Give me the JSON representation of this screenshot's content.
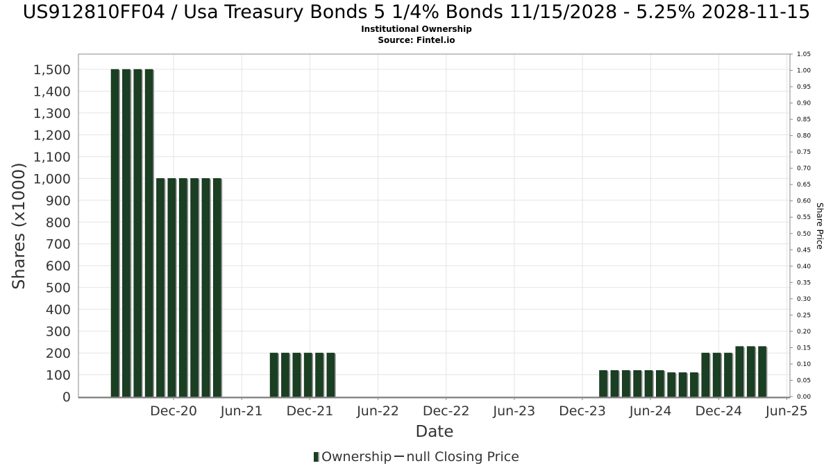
{
  "chart_data": {
    "type": "bar",
    "title": "US912810FF04 / Usa Treasury Bonds 5 1/4% Bonds 11/15/2028 - 5.25% 2028-11-15",
    "subtitle": "Institutional Ownership",
    "source": "Source: Fintel.io",
    "xlabel": "Date",
    "ylabel": "Shares (x1000)",
    "y2label": "Share Price",
    "ylim": [
      0,
      1560
    ],
    "y2lim": [
      0,
      1.05
    ],
    "y_ticks": [
      "0",
      "100",
      "200",
      "300",
      "400",
      "500",
      "600",
      "700",
      "800",
      "900",
      "1,000",
      "1,100",
      "1,200",
      "1,300",
      "1,400",
      "1,500"
    ],
    "y2_ticks": [
      "0.00",
      "0.05",
      "0.10",
      "0.15",
      "0.20",
      "0.25",
      "0.30",
      "0.35",
      "0.40",
      "0.45",
      "0.50",
      "0.55",
      "0.60",
      "0.65",
      "0.70",
      "0.75",
      "0.80",
      "0.85",
      "0.90",
      "0.95",
      "1.00",
      "1.05"
    ],
    "x_ticks": [
      "Dec-20",
      "Jun-21",
      "Dec-21",
      "Jun-22",
      "Dec-22",
      "Jun-23",
      "Dec-23",
      "Jun-24",
      "Dec-24",
      "Jun-25"
    ],
    "grid": true,
    "legend_position": "bottom",
    "series": [
      {
        "name": "Ownership",
        "color": "#1a3f22",
        "values": [
          {
            "date": "2020-09",
            "value": 1500
          },
          {
            "date": "2020-10",
            "value": 1500
          },
          {
            "date": "2020-11",
            "value": 1500
          },
          {
            "date": "2020-12",
            "value": 1500
          },
          {
            "date": "2021-01",
            "value": 1000
          },
          {
            "date": "2021-02",
            "value": 1000
          },
          {
            "date": "2021-03",
            "value": 1000
          },
          {
            "date": "2021-04",
            "value": 1000
          },
          {
            "date": "2021-05",
            "value": 1000
          },
          {
            "date": "2021-06",
            "value": 1000
          },
          {
            "date": "2021-11",
            "value": 200
          },
          {
            "date": "2021-12",
            "value": 200
          },
          {
            "date": "2022-01",
            "value": 200
          },
          {
            "date": "2022-02",
            "value": 200
          },
          {
            "date": "2022-03",
            "value": 200
          },
          {
            "date": "2022-04",
            "value": 200
          },
          {
            "date": "2024-04",
            "value": 120
          },
          {
            "date": "2024-05",
            "value": 120
          },
          {
            "date": "2024-06",
            "value": 120
          },
          {
            "date": "2024-07",
            "value": 120
          },
          {
            "date": "2024-08",
            "value": 120
          },
          {
            "date": "2024-09",
            "value": 120
          },
          {
            "date": "2024-10",
            "value": 110
          },
          {
            "date": "2024-11",
            "value": 110
          },
          {
            "date": "2024-12",
            "value": 110
          },
          {
            "date": "2025-01",
            "value": 200
          },
          {
            "date": "2025-02",
            "value": 200
          },
          {
            "date": "2025-03",
            "value": 200
          },
          {
            "date": "2025-04",
            "value": 230
          },
          {
            "date": "2025-05",
            "value": 230
          },
          {
            "date": "2025-06",
            "value": 230
          }
        ]
      },
      {
        "name": "null Closing Price",
        "color": "#333333",
        "values": []
      }
    ]
  }
}
